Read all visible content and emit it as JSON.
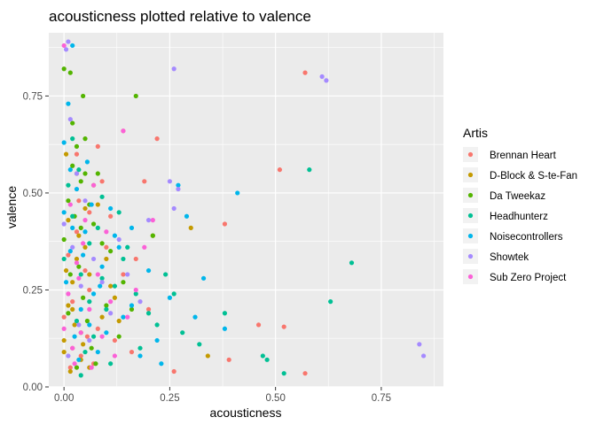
{
  "chart_data": {
    "type": "scatter",
    "title": "acousticness plotted relative to valence",
    "xlabel": "acousticness",
    "ylabel": "valence",
    "xlim": [
      -0.036,
      0.897
    ],
    "ylim": [
      0.0,
      0.913
    ],
    "x_ticks": [
      0.0,
      0.25,
      0.5,
      0.75
    ],
    "x_tick_labels": [
      "0.00",
      "0.25",
      "0.50",
      "0.75"
    ],
    "y_ticks": [
      0.0,
      0.25,
      0.5,
      0.75
    ],
    "y_tick_labels": [
      "0.00",
      "0.25",
      "0.50",
      "0.75"
    ],
    "grid": true,
    "background": "#ebebeb",
    "legend": {
      "title": "Artis",
      "position": "right"
    },
    "series": [
      {
        "name": "Brennan Heart",
        "color": "#F8766D",
        "points": [
          [
            0.57,
            0.81
          ],
          [
            0.51,
            0.56
          ],
          [
            0.38,
            0.42
          ],
          [
            0.22,
            0.64
          ],
          [
            0.14,
            0.66
          ],
          [
            0.08,
            0.62
          ],
          [
            0.46,
            0.16
          ],
          [
            0.52,
            0.155
          ],
          [
            0.26,
            0.04
          ],
          [
            0.57,
            0.035
          ],
          [
            0.39,
            0.07
          ],
          [
            0.19,
            0.53
          ],
          [
            0.06,
            0.45
          ],
          [
            0.03,
            0.4
          ],
          [
            0.1,
            0.36
          ],
          [
            0.05,
            0.3
          ],
          [
            0.02,
            0.22
          ],
          [
            0.08,
            0.15
          ],
          [
            0.12,
            0.12
          ],
          [
            0.04,
            0.08
          ],
          [
            0.015,
            0.05
          ],
          [
            0.16,
            0.09
          ],
          [
            0.2,
            0.2
          ],
          [
            0.01,
            0.34
          ],
          [
            0.03,
            0.6
          ],
          [
            0.06,
            0.25
          ],
          [
            0.11,
            0.44
          ],
          [
            0.02,
            0.1
          ],
          [
            0.07,
            0.06
          ],
          [
            0.14,
            0.29
          ],
          [
            0.0,
            0.18
          ],
          [
            0.09,
            0.53
          ],
          [
            0.17,
            0.33
          ],
          [
            0.035,
            0.48
          ],
          [
            0.055,
            0.13
          ]
        ]
      },
      {
        "name": "D-Block & S-te-Fan",
        "color": "#C49A00",
        "points": [
          [
            0.3,
            0.41
          ],
          [
            0.34,
            0.08
          ],
          [
            0.21,
            0.39
          ],
          [
            0.01,
            0.43
          ],
          [
            0.03,
            0.55
          ],
          [
            0.05,
            0.36
          ],
          [
            0.02,
            0.2
          ],
          [
            0.0,
            0.12
          ],
          [
            0.04,
            0.07
          ],
          [
            0.06,
            0.29
          ],
          [
            0.08,
            0.47
          ],
          [
            0.1,
            0.33
          ],
          [
            0.12,
            0.23
          ],
          [
            0.015,
            0.04
          ],
          [
            0.005,
            0.3
          ],
          [
            0.025,
            0.16
          ],
          [
            0.07,
            0.52
          ],
          [
            0.035,
            0.39
          ],
          [
            0.045,
            0.11
          ],
          [
            0.09,
            0.18
          ],
          [
            0.005,
            0.6
          ],
          [
            0.13,
            0.17
          ],
          [
            0.02,
            0.27
          ],
          [
            0.06,
            0.05
          ],
          [
            0.01,
            0.21
          ],
          [
            0.0,
            0.09
          ],
          [
            0.03,
            0.33
          ],
          [
            0.05,
            0.46
          ],
          [
            0.11,
            0.26
          ],
          [
            0.04,
            0.14
          ]
        ]
      },
      {
        "name": "Da Tweekaz",
        "color": "#53B400",
        "points": [
          [
            0.0,
            0.82
          ],
          [
            0.045,
            0.75
          ],
          [
            0.17,
            0.75
          ],
          [
            0.015,
            0.81
          ],
          [
            0.02,
            0.68
          ],
          [
            0.03,
            0.62
          ],
          [
            0.04,
            0.53
          ],
          [
            0.05,
            0.55
          ],
          [
            0.08,
            0.55
          ],
          [
            0.06,
            0.47
          ],
          [
            0.07,
            0.42
          ],
          [
            0.09,
            0.37
          ],
          [
            0.11,
            0.35
          ],
          [
            0.21,
            0.39
          ],
          [
            0.01,
            0.48
          ],
          [
            0.025,
            0.44
          ],
          [
            0.035,
            0.31
          ],
          [
            0.045,
            0.23
          ],
          [
            0.055,
            0.17
          ],
          [
            0.065,
            0.1
          ],
          [
            0.075,
            0.06
          ],
          [
            0.1,
            0.21
          ],
          [
            0.13,
            0.13
          ],
          [
            0.0,
            0.38
          ],
          [
            0.015,
            0.29
          ],
          [
            0.03,
            0.05
          ],
          [
            0.02,
            0.57
          ],
          [
            0.05,
            0.64
          ],
          [
            0.01,
            0.19
          ],
          [
            0.14,
            0.27
          ],
          [
            0.16,
            0.2
          ],
          [
            0.04,
            0.41
          ]
        ]
      },
      {
        "name": "Headhunterz",
        "color": "#00C094",
        "points": [
          [
            0.58,
            0.56
          ],
          [
            0.68,
            0.32
          ],
          [
            0.63,
            0.22
          ],
          [
            0.47,
            0.08
          ],
          [
            0.52,
            0.035
          ],
          [
            0.48,
            0.07
          ],
          [
            0.38,
            0.19
          ],
          [
            0.32,
            0.11
          ],
          [
            0.26,
            0.24
          ],
          [
            0.22,
            0.16
          ],
          [
            0.18,
            0.1
          ],
          [
            0.14,
            0.33
          ],
          [
            0.12,
            0.26
          ],
          [
            0.1,
            0.2
          ],
          [
            0.08,
            0.41
          ],
          [
            0.06,
            0.37
          ],
          [
            0.04,
            0.29
          ],
          [
            0.02,
            0.44
          ],
          [
            0.01,
            0.52
          ],
          [
            0.03,
            0.17
          ],
          [
            0.05,
            0.09
          ],
          [
            0.07,
            0.13
          ],
          [
            0.09,
            0.28
          ],
          [
            0.11,
            0.06
          ],
          [
            0.15,
            0.36
          ],
          [
            0.17,
            0.24
          ],
          [
            0.2,
            0.19
          ],
          [
            0.24,
            0.29
          ],
          [
            0.28,
            0.14
          ],
          [
            0.0,
            0.33
          ],
          [
            0.02,
            0.64
          ],
          [
            0.035,
            0.56
          ],
          [
            0.09,
            0.49
          ],
          [
            0.13,
            0.45
          ],
          [
            0.06,
            0.22
          ],
          [
            0.04,
            0.03
          ]
        ]
      },
      {
        "name": "Noisecontrollers",
        "color": "#00B6EB",
        "points": [
          [
            0.02,
            0.88
          ],
          [
            0.01,
            0.73
          ],
          [
            0.0,
            0.63
          ],
          [
            0.41,
            0.5
          ],
          [
            0.38,
            0.15
          ],
          [
            0.33,
            0.28
          ],
          [
            0.27,
            0.52
          ],
          [
            0.29,
            0.44
          ],
          [
            0.25,
            0.23
          ],
          [
            0.22,
            0.12
          ],
          [
            0.18,
            0.08
          ],
          [
            0.16,
            0.21
          ],
          [
            0.13,
            0.36
          ],
          [
            0.11,
            0.46
          ],
          [
            0.09,
            0.31
          ],
          [
            0.07,
            0.24
          ],
          [
            0.05,
            0.4
          ],
          [
            0.03,
            0.51
          ],
          [
            0.015,
            0.35
          ],
          [
            0.005,
            0.27
          ],
          [
            0.025,
            0.13
          ],
          [
            0.04,
            0.2
          ],
          [
            0.06,
            0.16
          ],
          [
            0.08,
            0.09
          ],
          [
            0.1,
            0.14
          ],
          [
            0.12,
            0.39
          ],
          [
            0.14,
            0.18
          ],
          [
            0.16,
            0.41
          ],
          [
            0.2,
            0.3
          ],
          [
            0.23,
            0.06
          ],
          [
            0.31,
            0.18
          ],
          [
            0.0,
            0.45
          ],
          [
            0.02,
            0.41
          ],
          [
            0.045,
            0.34
          ],
          [
            0.065,
            0.47
          ],
          [
            0.085,
            0.26
          ],
          [
            0.035,
            0.07
          ],
          [
            0.055,
            0.58
          ],
          [
            0.015,
            0.56
          ]
        ]
      },
      {
        "name": "Showtek",
        "color": "#A58AFF",
        "points": [
          [
            0.26,
            0.82
          ],
          [
            0.61,
            0.8
          ],
          [
            0.62,
            0.79
          ],
          [
            0.84,
            0.11
          ],
          [
            0.85,
            0.08
          ],
          [
            0.27,
            0.51
          ],
          [
            0.25,
            0.53
          ],
          [
            0.2,
            0.43
          ],
          [
            0.26,
            0.46
          ],
          [
            0.01,
            0.89
          ],
          [
            0.005,
            0.87
          ],
          [
            0.03,
            0.55
          ],
          [
            0.05,
            0.48
          ],
          [
            0.07,
            0.33
          ],
          [
            0.09,
            0.27
          ],
          [
            0.11,
            0.19
          ],
          [
            0.0,
            0.42
          ],
          [
            0.02,
            0.36
          ],
          [
            0.04,
            0.26
          ],
          [
            0.06,
            0.12
          ],
          [
            0.015,
            0.69
          ],
          [
            0.13,
            0.38
          ],
          [
            0.15,
            0.29
          ],
          [
            0.18,
            0.22
          ],
          [
            0.035,
            0.16
          ],
          [
            0.01,
            0.08
          ]
        ]
      },
      {
        "name": "Sub Zero Project",
        "color": "#FB61D7",
        "points": [
          [
            0.0,
            0.88
          ],
          [
            0.14,
            0.66
          ],
          [
            0.21,
            0.43
          ],
          [
            0.1,
            0.4
          ],
          [
            0.08,
            0.29
          ],
          [
            0.06,
            0.2
          ],
          [
            0.04,
            0.14
          ],
          [
            0.02,
            0.1
          ],
          [
            0.01,
            0.24
          ],
          [
            0.03,
            0.32
          ],
          [
            0.05,
            0.43
          ],
          [
            0.07,
            0.52
          ],
          [
            0.09,
            0.13
          ],
          [
            0.12,
            0.08
          ],
          [
            0.15,
            0.18
          ],
          [
            0.17,
            0.25
          ],
          [
            0.19,
            0.36
          ],
          [
            0.0,
            0.15
          ],
          [
            0.025,
            0.06
          ],
          [
            0.045,
            0.37
          ],
          [
            0.065,
            0.05
          ],
          [
            0.015,
            0.47
          ],
          [
            0.035,
            0.28
          ],
          [
            0.11,
            0.22
          ]
        ]
      }
    ]
  }
}
